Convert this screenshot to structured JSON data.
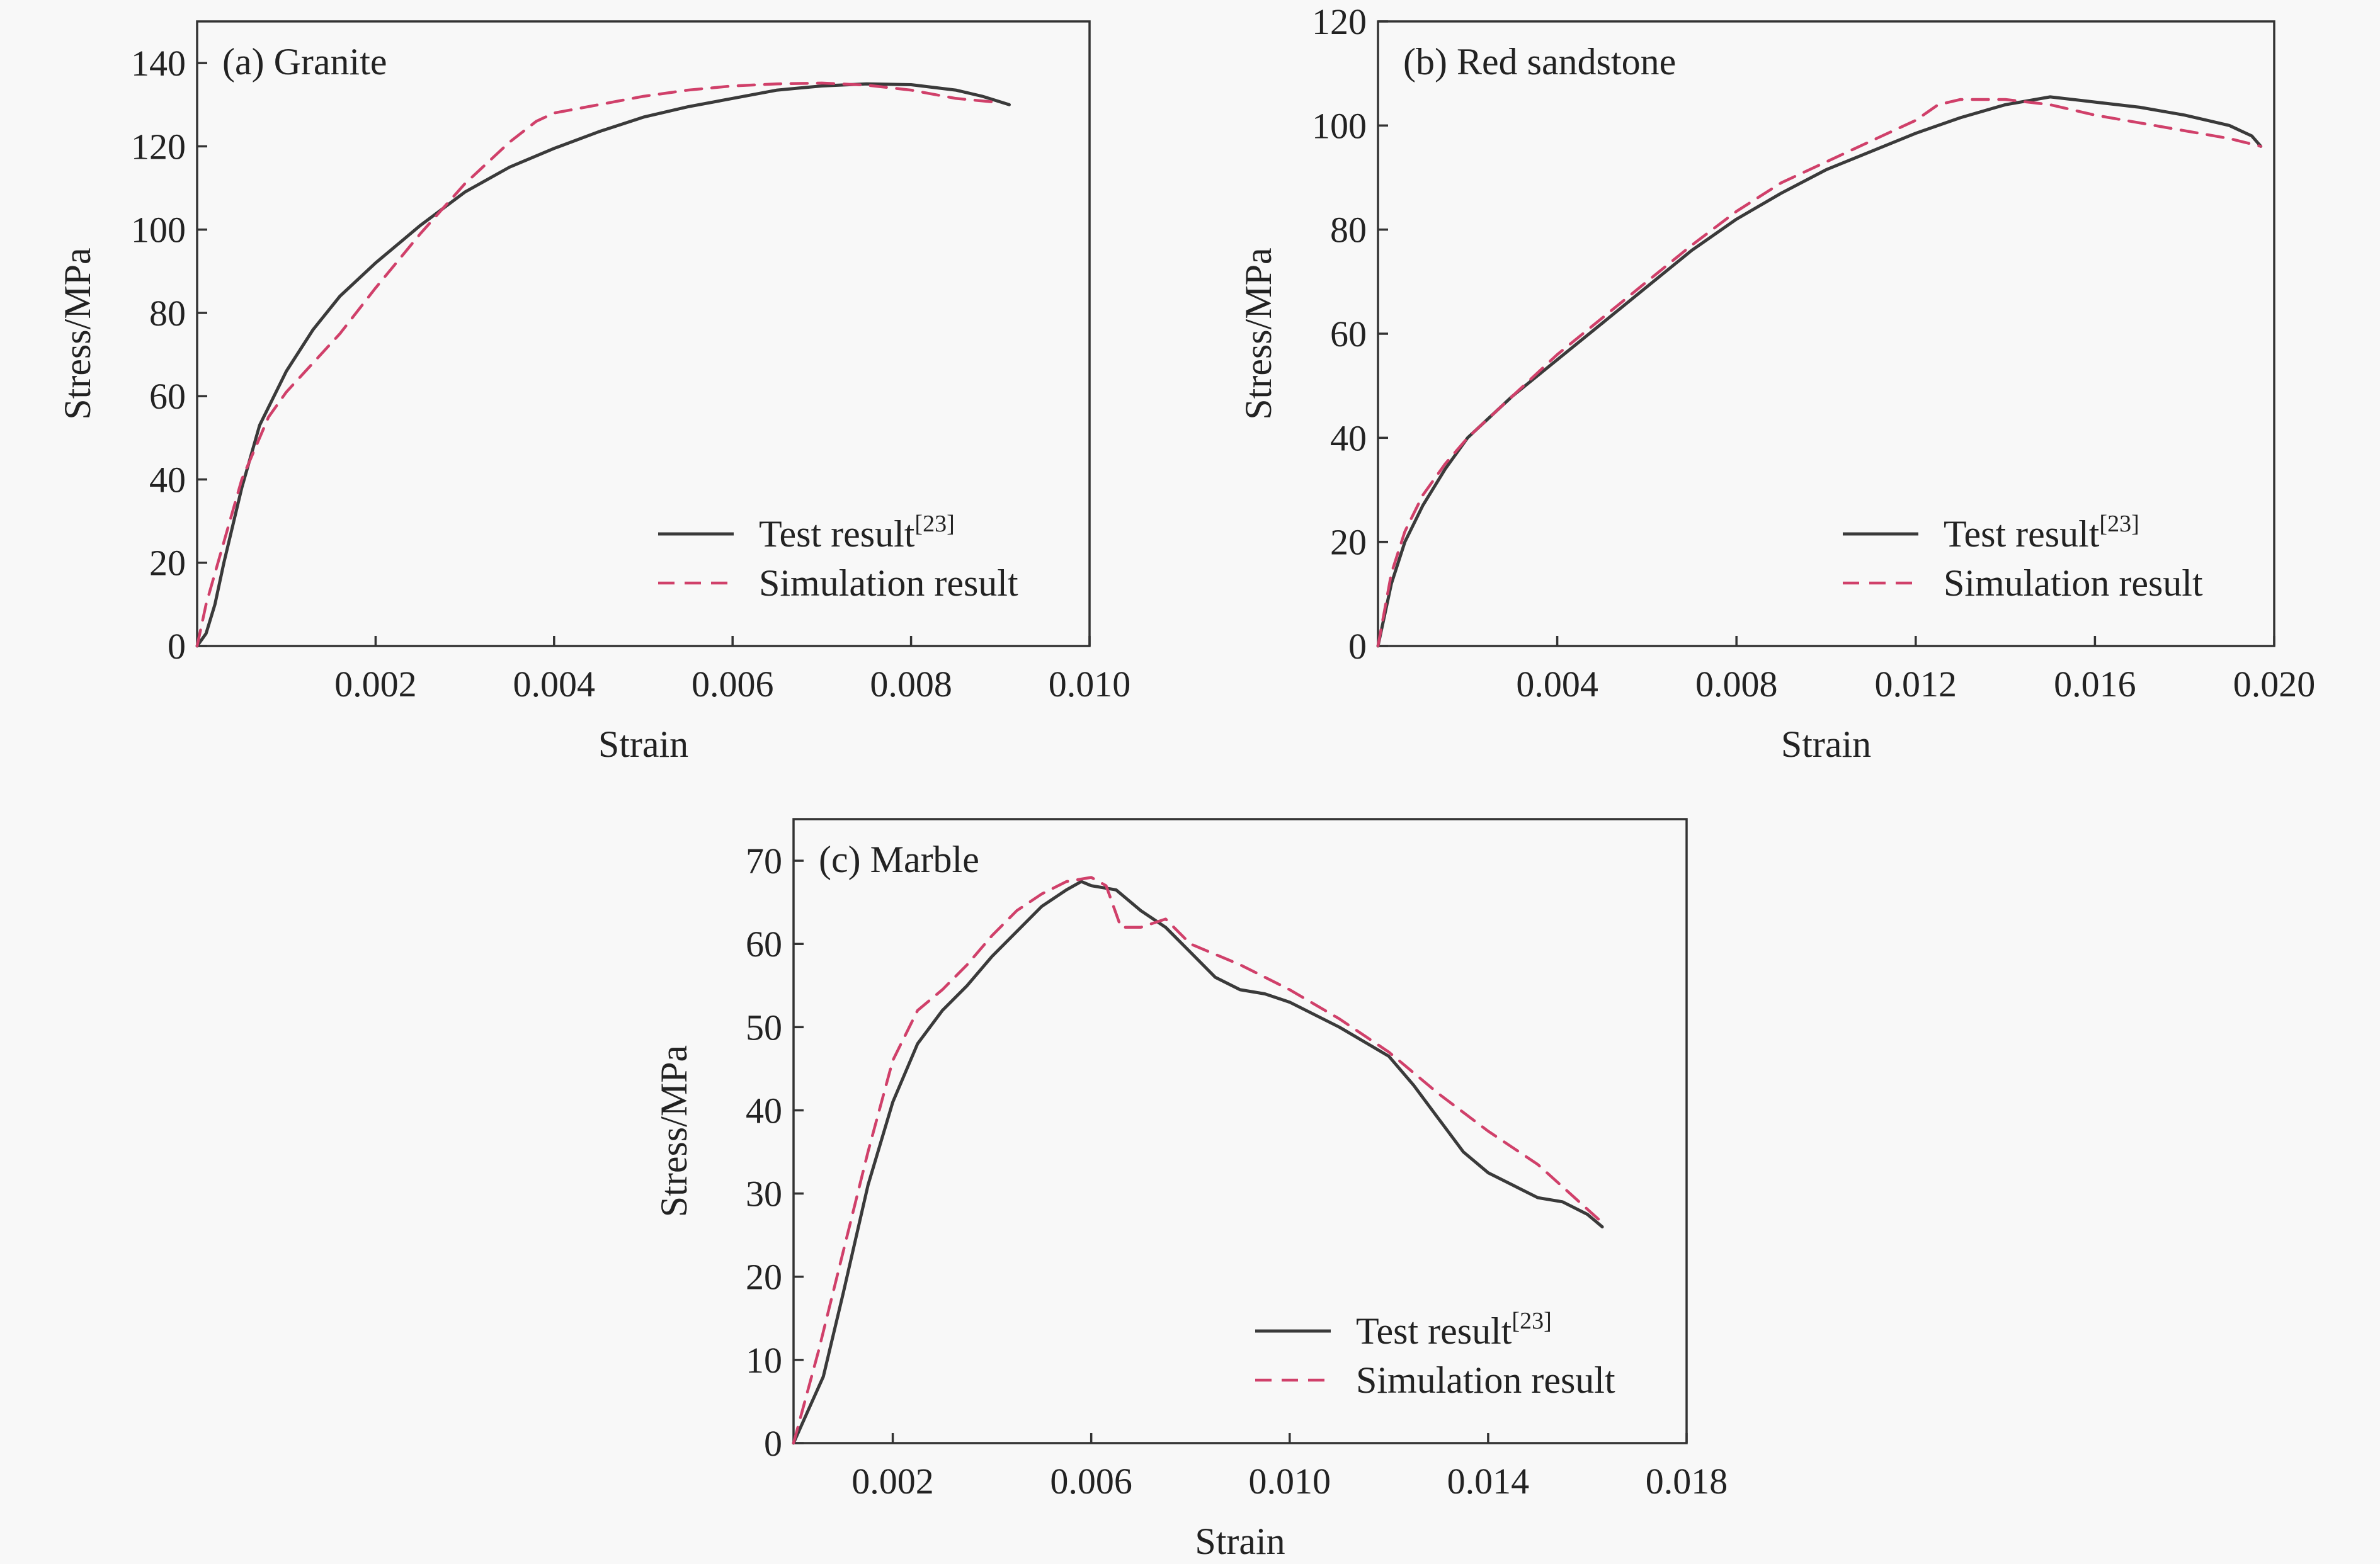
{
  "figure": {
    "colors": {
      "test": "#3a3a3a",
      "simulation": "#d0406a",
      "axis": "#333333",
      "background": "#f8f8f8"
    }
  },
  "chart_data": [
    {
      "type": "line",
      "title": "(a) Granite",
      "xlabel": "Strain",
      "ylabel": "Stress/MPa",
      "xlim": [
        0,
        0.01
      ],
      "ylim": [
        0,
        150
      ],
      "xticks": [
        0.002,
        0.004,
        0.006,
        0.008,
        0.01
      ],
      "xtick_labels": [
        "0.002",
        "0.004",
        "0.006",
        "0.008",
        "0.010"
      ],
      "yticks": [
        0,
        20,
        40,
        60,
        80,
        100,
        120,
        140
      ],
      "ytick_labels": [
        "0",
        "20",
        "40",
        "60",
        "80",
        "100",
        "120",
        "140"
      ],
      "legend": {
        "position": "bottom-right",
        "test_label": "Test result",
        "test_superscript": "[23]",
        "simulation_label": "Simulation result"
      },
      "series": [
        {
          "name": "Test result",
          "style": "solid",
          "x": [
            0,
            0.0001,
            0.0002,
            0.0003,
            0.0005,
            0.0007,
            0.001,
            0.0013,
            0.0016,
            0.002,
            0.0025,
            0.003,
            0.0035,
            0.004,
            0.0045,
            0.005,
            0.0055,
            0.006,
            0.0065,
            0.007,
            0.0075,
            0.008,
            0.0085,
            0.0088,
            0.0091
          ],
          "y": [
            0,
            3,
            10,
            20,
            38,
            53,
            66,
            76,
            84,
            92,
            101,
            109,
            115,
            119.5,
            123.5,
            127,
            129.5,
            131.5,
            133.5,
            134.5,
            135,
            134.8,
            133.5,
            132,
            130
          ]
        },
        {
          "name": "Simulation result",
          "style": "dashed",
          "x": [
            0,
            0.0001,
            0.0003,
            0.0005,
            0.0008,
            0.001,
            0.0013,
            0.0016,
            0.002,
            0.0025,
            0.003,
            0.0035,
            0.0038,
            0.004,
            0.0045,
            0.005,
            0.0055,
            0.006,
            0.0065,
            0.007,
            0.0075,
            0.008,
            0.0085,
            0.009
          ],
          "y": [
            0,
            10,
            25,
            40,
            55,
            61,
            68,
            75,
            86,
            99,
            111,
            121,
            126,
            128,
            130,
            132,
            133.5,
            134.5,
            135,
            135.2,
            134.7,
            133.5,
            131.5,
            130.5
          ]
        }
      ]
    },
    {
      "type": "line",
      "title": "(b) Red sandstone",
      "xlabel": "Strain",
      "ylabel": "Stress/MPa",
      "xlim": [
        0,
        0.02
      ],
      "ylim": [
        0,
        120
      ],
      "xticks": [
        0.004,
        0.008,
        0.012,
        0.016,
        0.02
      ],
      "xtick_labels": [
        "0.004",
        "0.008",
        "0.012",
        "0.016",
        "0.020"
      ],
      "yticks": [
        0,
        20,
        40,
        60,
        80,
        100,
        120
      ],
      "ytick_labels": [
        "0",
        "20",
        "40",
        "60",
        "80",
        "100",
        "120"
      ],
      "legend": {
        "position": "bottom-right",
        "test_label": "Test result",
        "test_superscript": "[23]",
        "simulation_label": "Simulation result"
      },
      "series": [
        {
          "name": "Test result",
          "style": "solid",
          "x": [
            0,
            0.0003,
            0.0006,
            0.001,
            0.0015,
            0.002,
            0.003,
            0.004,
            0.005,
            0.006,
            0.007,
            0.008,
            0.009,
            0.01,
            0.011,
            0.012,
            0.013,
            0.014,
            0.015,
            0.016,
            0.017,
            0.018,
            0.0185,
            0.019,
            0.0195,
            0.0197
          ],
          "y": [
            0,
            12,
            20,
            27,
            34,
            40,
            48,
            55,
            62,
            69,
            76,
            82,
            87,
            91.5,
            95,
            98.5,
            101.5,
            104,
            105.5,
            104.5,
            103.5,
            102,
            101,
            100,
            98,
            96
          ]
        },
        {
          "name": "Simulation result",
          "style": "dashed",
          "x": [
            0,
            0.0003,
            0.0006,
            0.001,
            0.0015,
            0.002,
            0.003,
            0.004,
            0.005,
            0.006,
            0.007,
            0.008,
            0.009,
            0.01,
            0.011,
            0.012,
            0.0125,
            0.013,
            0.014,
            0.015,
            0.016,
            0.017,
            0.018,
            0.019,
            0.0197
          ],
          "y": [
            0,
            14,
            22,
            29,
            35,
            40,
            48,
            56,
            63,
            70,
            77,
            83.5,
            89,
            93,
            97,
            101,
            104,
            105,
            105,
            104,
            102,
            100.5,
            99,
            97.5,
            96
          ]
        }
      ]
    },
    {
      "type": "line",
      "title": "(c) Marble",
      "xlabel": "Strain",
      "ylabel": "Stress/MPa",
      "xlim": [
        0,
        0.018
      ],
      "ylim": [
        0,
        75
      ],
      "xticks": [
        0.002,
        0.006,
        0.01,
        0.014,
        0.018
      ],
      "xtick_labels": [
        "0.002",
        "0.006",
        "0.010",
        "0.014",
        "0.018"
      ],
      "yticks": [
        0,
        10,
        20,
        30,
        40,
        50,
        60,
        70
      ],
      "ytick_labels": [
        "0",
        "10",
        "20",
        "30",
        "40",
        "50",
        "60",
        "70"
      ],
      "legend": {
        "position": "bottom-right",
        "test_label": "Test result",
        "test_superscript": "[23]",
        "simulation_label": "Simulation result"
      },
      "series": [
        {
          "name": "Test result",
          "style": "solid",
          "x": [
            0,
            0.0003,
            0.0006,
            0.001,
            0.0015,
            0.002,
            0.0025,
            0.003,
            0.0035,
            0.004,
            0.0045,
            0.005,
            0.0055,
            0.0058,
            0.006,
            0.0065,
            0.007,
            0.0075,
            0.008,
            0.0085,
            0.009,
            0.0095,
            0.01,
            0.011,
            0.012,
            0.0125,
            0.013,
            0.0135,
            0.014,
            0.0145,
            0.015,
            0.0155,
            0.016,
            0.0163
          ],
          "y": [
            0,
            4,
            8,
            18,
            31,
            41,
            48,
            52,
            55,
            58.5,
            61.5,
            64.5,
            66.5,
            67.5,
            67,
            66.5,
            64,
            62,
            59,
            56,
            54.5,
            54,
            53,
            50,
            46.5,
            43,
            39,
            35,
            32.5,
            31,
            29.5,
            29,
            27.5,
            26
          ]
        },
        {
          "name": "Simulation result",
          "style": "dashed",
          "x": [
            0,
            0.0005,
            0.001,
            0.0015,
            0.002,
            0.0025,
            0.003,
            0.0035,
            0.004,
            0.0045,
            0.005,
            0.0055,
            0.006,
            0.0063,
            0.0066,
            0.007,
            0.0075,
            0.008,
            0.009,
            0.01,
            0.011,
            0.012,
            0.013,
            0.014,
            0.015,
            0.0163
          ],
          "y": [
            0,
            11,
            23,
            35,
            46,
            52,
            54.5,
            57.5,
            61,
            64,
            66,
            67.5,
            68,
            67,
            62,
            62,
            63,
            60,
            57.5,
            54.5,
            51,
            47,
            42,
            37.5,
            33.5,
            26.5
          ]
        }
      ]
    }
  ]
}
